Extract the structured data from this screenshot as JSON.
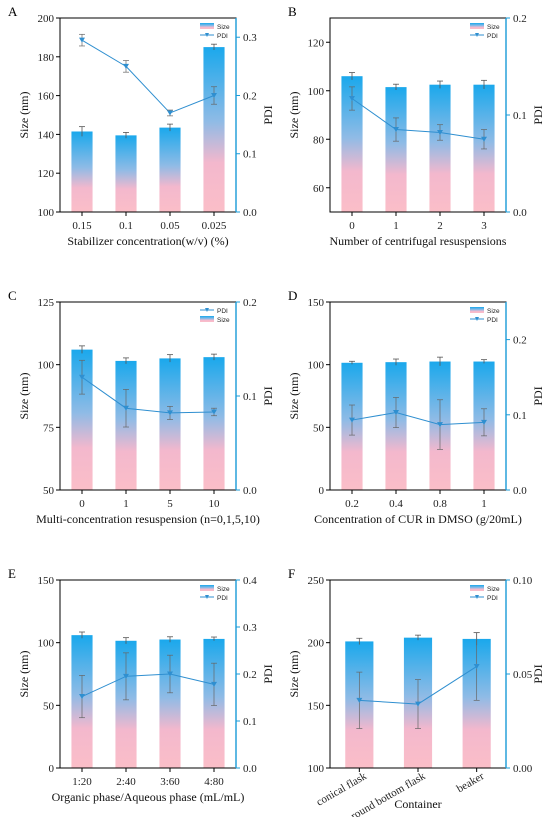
{
  "chart_data": [
    {
      "panel": "A",
      "type": "bar+line",
      "categories": [
        "0.15",
        "0.1",
        "0.05",
        "0.025"
      ],
      "xlabel": "Stabilizer concentration(w/v) (%)",
      "ylabel": "Size (nm)",
      "y2label": "PDI",
      "ylim": [
        100,
        200
      ],
      "yticks": [
        100,
        120,
        140,
        160,
        180,
        200
      ],
      "y2lim": [
        0,
        0.333
      ],
      "y2ticks": [
        0.0,
        0.1,
        0.2,
        0.3
      ],
      "legend": [
        "Size",
        "PDI"
      ],
      "legend_position": "top-right",
      "series": [
        {
          "name": "Size",
          "kind": "bar",
          "values": [
            141.5,
            139.5,
            143.5,
            185
          ],
          "errors": [
            2.5,
            1.5,
            1.8,
            1.5
          ]
        },
        {
          "name": "PDI",
          "kind": "line",
          "values": [
            0.295,
            0.25,
            0.17,
            0.2
          ],
          "errors": [
            0.01,
            0.01,
            0.005,
            0.015
          ]
        }
      ]
    },
    {
      "panel": "B",
      "type": "bar+line",
      "categories": [
        "0",
        "1",
        "2",
        "3"
      ],
      "xlabel": "Number of centrifugal resuspensions",
      "ylabel": "Size (nm)",
      "y2label": "PDI",
      "ylim": [
        50,
        130
      ],
      "yticks": [
        60,
        80,
        100,
        120
      ],
      "y2lim": [
        0,
        0.2
      ],
      "y2ticks": [
        0.0,
        0.1,
        0.2
      ],
      "legend": [
        "Size",
        "PDI"
      ],
      "legend_position": "top-right",
      "series": [
        {
          "name": "Size",
          "kind": "bar",
          "values": [
            106,
            101.5,
            102.5,
            102.5
          ],
          "errors": [
            1.5,
            1.2,
            1.5,
            1.8
          ]
        },
        {
          "name": "PDI",
          "kind": "line",
          "values": [
            0.117,
            0.085,
            0.082,
            0.075
          ],
          "errors": [
            0.012,
            0.012,
            0.008,
            0.01
          ]
        }
      ]
    },
    {
      "panel": "C",
      "type": "bar+line",
      "categories": [
        "0",
        "1",
        "5",
        "10"
      ],
      "xlabel": "Multi-concentration resuspension (n=0,1,5,10)",
      "ylabel": "Size (nm)",
      "y2label": "PDI",
      "ylim": [
        50,
        125
      ],
      "yticks": [
        50,
        75,
        100,
        125
      ],
      "y2lim": [
        0,
        0.2
      ],
      "y2ticks": [
        0.0,
        0.1,
        0.2
      ],
      "legend": [
        "PDI",
        "Size"
      ],
      "legend_position": "top-right",
      "series": [
        {
          "name": "Size",
          "kind": "bar",
          "values": [
            106,
            101.5,
            102.5,
            103
          ],
          "errors": [
            1.5,
            1.2,
            1.5,
            1.2
          ]
        },
        {
          "name": "PDI",
          "kind": "line",
          "values": [
            0.12,
            0.087,
            0.082,
            0.083
          ],
          "errors": [
            0.018,
            0.02,
            0.007,
            0.004
          ]
        }
      ]
    },
    {
      "panel": "D",
      "type": "bar+line",
      "categories": [
        "0.2",
        "0.4",
        "0.8",
        "1"
      ],
      "xlabel": "Concentration of CUR in DMSO (g/20mL)",
      "ylabel": "Size (nm)",
      "y2label": "PDI",
      "ylim": [
        0,
        150
      ],
      "yticks": [
        0,
        50,
        100,
        150
      ],
      "y2lim": [
        0,
        0.25
      ],
      "y2ticks": [
        0.0,
        0.1,
        0.2
      ],
      "legend": [
        "Size",
        "PDI"
      ],
      "legend_position": "top-right",
      "series": [
        {
          "name": "Size",
          "kind": "bar",
          "values": [
            101.5,
            102,
            102.5,
            102.5
          ],
          "errors": [
            1.2,
            2.5,
            3.5,
            1.5
          ]
        },
        {
          "name": "PDI",
          "kind": "line",
          "values": [
            0.093,
            0.103,
            0.087,
            0.09
          ],
          "errors": [
            0.02,
            0.02,
            0.033,
            0.018
          ]
        }
      ]
    },
    {
      "panel": "E",
      "type": "bar+line",
      "categories": [
        "1:20",
        "2:40",
        "3:60",
        "4:80"
      ],
      "xlabel": "Organic phase/Aqueous phase (mL/mL)",
      "ylabel": "Size (nm)",
      "y2label": "PDI",
      "ylim": [
        0,
        150
      ],
      "yticks": [
        0,
        50,
        100,
        150
      ],
      "y2lim": [
        0,
        0.4
      ],
      "y2ticks": [
        0.0,
        0.1,
        0.2,
        0.3,
        0.4
      ],
      "legend": [
        "Size",
        "PDI"
      ],
      "legend_position": "top-right",
      "series": [
        {
          "name": "Size",
          "kind": "bar",
          "values": [
            106,
            101.5,
            102.5,
            103
          ],
          "errors": [
            2.5,
            2.5,
            2.2,
            1.5
          ]
        },
        {
          "name": "PDI",
          "kind": "line",
          "values": [
            0.152,
            0.195,
            0.2,
            0.178
          ],
          "errors": [
            0.045,
            0.05,
            0.04,
            0.045
          ]
        }
      ]
    },
    {
      "panel": "F",
      "type": "bar+line",
      "categories": [
        "conical flask",
        "round bottom flask",
        "beaker"
      ],
      "xlabel": "Container",
      "ylabel": "Size (nm)",
      "y2label": "PDI",
      "ylim": [
        100,
        250
      ],
      "yticks": [
        100,
        150,
        200,
        250
      ],
      "y2lim": [
        0,
        0.1
      ],
      "y2ticks": [
        0.0,
        0.05,
        0.1
      ],
      "legend": [
        "Size",
        "PDI"
      ],
      "legend_position": "top-right",
      "series": [
        {
          "name": "Size",
          "kind": "bar",
          "values": [
            201,
            204,
            203
          ],
          "errors": [
            2.5,
            2,
            5
          ]
        },
        {
          "name": "PDI",
          "kind": "line",
          "values": [
            0.036,
            0.034,
            0.054
          ],
          "errors": [
            0.015,
            0.013,
            0.018
          ]
        }
      ]
    }
  ],
  "colors": {
    "bar_top": "#1aa8ec",
    "bar_mid": "#6fb8e8",
    "bar_bottom": "#f8b6c6",
    "line": "#2f8fd0",
    "axis": "#1a9bd7"
  }
}
